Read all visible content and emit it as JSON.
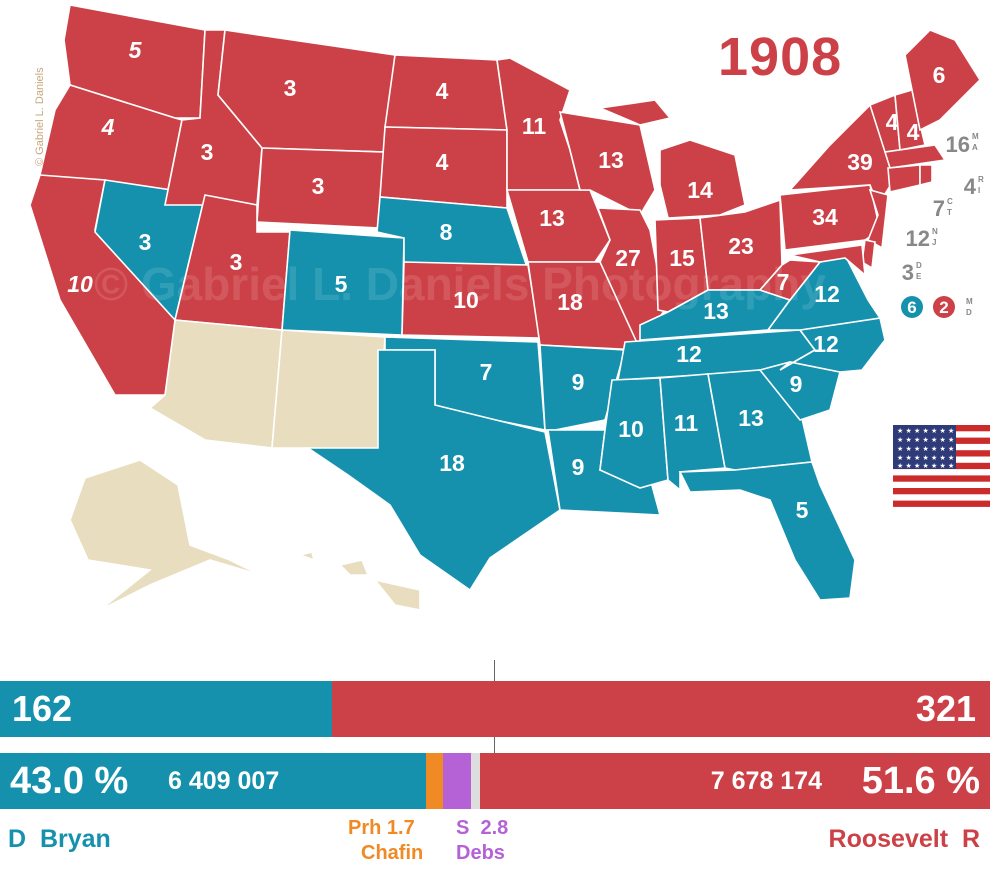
{
  "title": "1908",
  "credit": "© Gabriel L. Daniels",
  "watermark": "© Gabriel L. Daniels Photography",
  "colors": {
    "republican": "#cc4147",
    "democrat": "#1591ad",
    "territory": "#e8ddbf",
    "prohibition": "#f08a24",
    "socialist": "#b562d6",
    "other": "#dddddd"
  },
  "states": {
    "WA": "5",
    "OR": "4",
    "CA": "10",
    "ID": "3",
    "NV": "3",
    "UT": "3",
    "MT": "3",
    "WY": "3",
    "CO": "5",
    "ND": "4",
    "SD": "4",
    "NE": "8",
    "KS": "10",
    "OK": "7",
    "TX": "18",
    "MN": "11",
    "IA": "13",
    "MO": "18",
    "AR": "9",
    "LA": "9",
    "WI": "13",
    "IL": "27",
    "MI": "14",
    "IN": "15",
    "OH": "23",
    "KY": "13",
    "TN": "12",
    "MS": "10",
    "AL": "11",
    "GA": "13",
    "FL": "5",
    "SC": "9",
    "NC": "12",
    "VA": "12",
    "WV": "7",
    "PA": "34",
    "NY": "39",
    "VT": "4",
    "NH": "4",
    "ME": "6"
  },
  "northeast": [
    {
      "num": "16",
      "abbr": [
        "M",
        "A"
      ]
    },
    {
      "num": "4",
      "abbr": [
        "R",
        "I"
      ]
    },
    {
      "num": "7",
      "abbr": [
        "C",
        "T"
      ]
    },
    {
      "num": "12",
      "abbr": [
        "N",
        "J"
      ]
    },
    {
      "num": "3",
      "abbr": [
        "D",
        "E"
      ]
    }
  ],
  "maryland": {
    "dem": "6",
    "rep": "2",
    "abbr": [
      "M",
      "D"
    ]
  },
  "electoral": {
    "dem": "162",
    "rep": "321",
    "dem_share": 0.3354
  },
  "popular": {
    "dem_pct": "43.0 %",
    "dem_votes": "6 409 007",
    "rep_pct": "51.6 %",
    "rep_votes": "7 678 174",
    "shares": {
      "dem": 0.43,
      "prohibition": 0.017,
      "socialist": 0.028,
      "other": 0.009,
      "rep": 0.516
    }
  },
  "candidates": {
    "dem": {
      "party": "D",
      "name": "Bryan"
    },
    "rep": {
      "party": "R",
      "name": "Roosevelt"
    },
    "prohibition": {
      "party": "Prh",
      "pct": "1.7",
      "name": "Chafin"
    },
    "socialist": {
      "party": "S",
      "pct": "2.8",
      "name": "Debs"
    }
  }
}
